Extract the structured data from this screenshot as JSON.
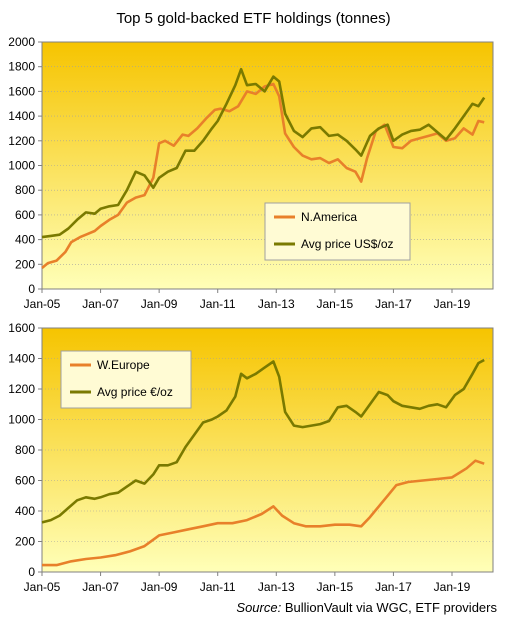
{
  "title": "Top 5 gold-backed ETF holdings (tonnes)",
  "source": {
    "label": "Source:",
    "text": " BullionVault via WGC, ETF providers"
  },
  "colors": {
    "orange": "#e8802a",
    "olive": "#7a7a00",
    "bg_top": "#f6c400",
    "bg_bottom": "#ffffb8",
    "grid": "#a0a0a0"
  },
  "chart_data": [
    {
      "type": "line",
      "title": "",
      "xlabel": "",
      "ylabel": "",
      "x_ticks": [
        "Jan-05",
        "Jan-07",
        "Jan-09",
        "Jan-11",
        "Jan-13",
        "Jan-15",
        "Jan-17",
        "Jan-19"
      ],
      "xlim": [
        2005.0,
        2020.4
      ],
      "ylim": [
        0,
        2000
      ],
      "y_ticks": [
        0,
        200,
        400,
        600,
        800,
        1000,
        1200,
        1400,
        1600,
        1800,
        2000
      ],
      "legend_position": "center-right",
      "series": [
        {
          "name": "N.America",
          "color": "#e8802a",
          "x": [
            2005.0,
            2005.2,
            2005.5,
            2005.8,
            2006.0,
            2006.3,
            2006.5,
            2006.8,
            2007.0,
            2007.3,
            2007.6,
            2007.9,
            2008.2,
            2008.5,
            2008.8,
            2009.0,
            2009.2,
            2009.5,
            2009.8,
            2010.0,
            2010.3,
            2010.6,
            2010.9,
            2011.1,
            2011.4,
            2011.7,
            2012.0,
            2012.3,
            2012.6,
            2012.9,
            2013.1,
            2013.3,
            2013.6,
            2013.9,
            2014.2,
            2014.5,
            2014.8,
            2015.1,
            2015.4,
            2015.7,
            2015.9,
            2016.1,
            2016.4,
            2016.7,
            2017.0,
            2017.3,
            2017.6,
            2017.9,
            2018.2,
            2018.5,
            2018.8,
            2019.1,
            2019.4,
            2019.7,
            2019.9,
            2020.1
          ],
          "values": [
            170,
            210,
            230,
            300,
            380,
            420,
            440,
            470,
            510,
            560,
            600,
            700,
            740,
            760,
            900,
            1180,
            1200,
            1160,
            1250,
            1240,
            1300,
            1380,
            1450,
            1460,
            1440,
            1480,
            1600,
            1580,
            1640,
            1660,
            1560,
            1260,
            1150,
            1080,
            1050,
            1060,
            1020,
            1050,
            980,
            950,
            870,
            1060,
            1280,
            1330,
            1150,
            1140,
            1200,
            1220,
            1240,
            1260,
            1200,
            1220,
            1300,
            1250,
            1360,
            1350
          ]
        },
        {
          "name": "Avg price US$/oz",
          "color": "#7a7a00",
          "x": [
            2005.0,
            2005.3,
            2005.6,
            2005.9,
            2006.2,
            2006.5,
            2006.8,
            2007.0,
            2007.3,
            2007.6,
            2007.9,
            2008.2,
            2008.5,
            2008.8,
            2009.0,
            2009.3,
            2009.6,
            2009.9,
            2010.2,
            2010.5,
            2010.8,
            2011.0,
            2011.3,
            2011.6,
            2011.8,
            2012.0,
            2012.3,
            2012.6,
            2012.9,
            2013.1,
            2013.3,
            2013.6,
            2013.9,
            2014.2,
            2014.5,
            2014.8,
            2015.1,
            2015.4,
            2015.7,
            2015.9,
            2016.2,
            2016.5,
            2016.8,
            2017.0,
            2017.3,
            2017.6,
            2017.9,
            2018.2,
            2018.5,
            2018.8,
            2019.1,
            2019.4,
            2019.7,
            2019.9,
            2020.1
          ],
          "values": [
            420,
            430,
            440,
            490,
            560,
            620,
            610,
            650,
            670,
            680,
            800,
            950,
            920,
            820,
            900,
            950,
            980,
            1120,
            1120,
            1200,
            1300,
            1360,
            1500,
            1650,
            1780,
            1650,
            1660,
            1600,
            1720,
            1680,
            1420,
            1280,
            1230,
            1300,
            1310,
            1240,
            1250,
            1200,
            1130,
            1080,
            1240,
            1300,
            1330,
            1200,
            1250,
            1280,
            1290,
            1330,
            1270,
            1210,
            1300,
            1400,
            1500,
            1480,
            1550
          ]
        }
      ]
    },
    {
      "type": "line",
      "title": "",
      "xlabel": "",
      "ylabel": "",
      "x_ticks": [
        "Jan-05",
        "Jan-07",
        "Jan-09",
        "Jan-11",
        "Jan-13",
        "Jan-15",
        "Jan-17",
        "Jan-19"
      ],
      "xlim": [
        2005.0,
        2020.4
      ],
      "ylim": [
        0,
        1600
      ],
      "y_ticks": [
        0,
        200,
        400,
        600,
        800,
        1000,
        1200,
        1400,
        1600
      ],
      "legend_position": "top-left",
      "series": [
        {
          "name": "W.Europe",
          "color": "#e8802a",
          "x": [
            2005.0,
            2005.5,
            2006.0,
            2006.5,
            2007.0,
            2007.5,
            2008.0,
            2008.5,
            2009.0,
            2009.5,
            2010.0,
            2010.5,
            2011.0,
            2011.5,
            2012.0,
            2012.5,
            2012.9,
            2013.2,
            2013.6,
            2014.0,
            2014.5,
            2015.0,
            2015.5,
            2015.9,
            2016.2,
            2016.5,
            2016.8,
            2017.1,
            2017.5,
            2018.0,
            2018.5,
            2019.0,
            2019.5,
            2019.8,
            2020.1
          ],
          "values": [
            45,
            45,
            70,
            85,
            95,
            110,
            135,
            170,
            240,
            260,
            280,
            300,
            320,
            320,
            340,
            380,
            430,
            370,
            320,
            300,
            300,
            310,
            310,
            300,
            360,
            430,
            500,
            570,
            590,
            600,
            610,
            620,
            680,
            730,
            710
          ]
        },
        {
          "name": "Avg price €/oz",
          "color": "#7a7a00",
          "x": [
            2005.0,
            2005.3,
            2005.6,
            2005.9,
            2006.2,
            2006.5,
            2006.8,
            2007.0,
            2007.3,
            2007.6,
            2007.9,
            2008.2,
            2008.5,
            2008.8,
            2009.0,
            2009.3,
            2009.6,
            2009.9,
            2010.2,
            2010.5,
            2010.8,
            2011.0,
            2011.3,
            2011.6,
            2011.8,
            2012.0,
            2012.3,
            2012.6,
            2012.9,
            2013.1,
            2013.3,
            2013.6,
            2013.9,
            2014.2,
            2014.5,
            2014.8,
            2015.1,
            2015.4,
            2015.7,
            2015.9,
            2016.2,
            2016.5,
            2016.8,
            2017.0,
            2017.3,
            2017.6,
            2017.9,
            2018.2,
            2018.5,
            2018.8,
            2019.1,
            2019.4,
            2019.7,
            2019.9,
            2020.1
          ],
          "values": [
            325,
            340,
            370,
            420,
            470,
            490,
            480,
            490,
            510,
            520,
            560,
            600,
            580,
            640,
            700,
            700,
            720,
            820,
            900,
            980,
            1000,
            1020,
            1060,
            1150,
            1300,
            1270,
            1300,
            1340,
            1380,
            1280,
            1050,
            960,
            950,
            960,
            970,
            990,
            1080,
            1090,
            1050,
            1020,
            1100,
            1180,
            1160,
            1120,
            1090,
            1080,
            1070,
            1090,
            1100,
            1080,
            1160,
            1200,
            1300,
            1370,
            1390
          ]
        }
      ]
    }
  ]
}
